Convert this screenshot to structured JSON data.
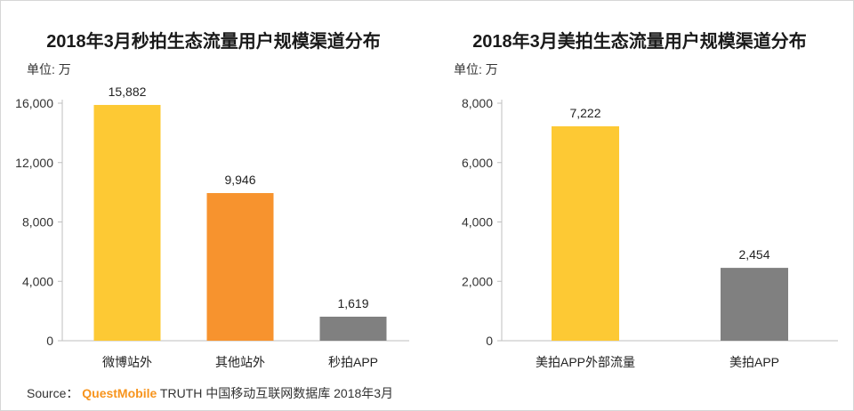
{
  "chart_data": [
    {
      "type": "bar",
      "title": "2018年3月秒拍生态流量用户规模渠道分布",
      "unit": "单位: 万",
      "categories": [
        "微博站外",
        "其他站外",
        "秒拍APP"
      ],
      "values": [
        15882,
        9946,
        1619
      ],
      "value_labels": [
        "15,882",
        "9,946",
        "1,619"
      ],
      "colors": [
        "#fdc934",
        "#f7932e",
        "#808080"
      ],
      "yticks": [
        "0",
        "4,000",
        "8,000",
        "12,000",
        "16,000"
      ],
      "ylim": [
        0,
        16000
      ],
      "grid": false
    },
    {
      "type": "bar",
      "title": "2018年3月美拍生态流量用户规模渠道分布",
      "unit": "单位: 万",
      "categories": [
        "美拍APP外部流量",
        "美拍APP"
      ],
      "values": [
        7222,
        2454
      ],
      "value_labels": [
        "7,222",
        "2,454"
      ],
      "colors": [
        "#fdc934",
        "#808080"
      ],
      "yticks": [
        "0",
        "2,000",
        "4,000",
        "6,000",
        "8,000"
      ],
      "ylim": [
        0,
        8000
      ],
      "grid": false
    }
  ],
  "source": {
    "prefix": "Source：",
    "brand": "QuestMobile",
    "suffix": "TRUTH 中国移动互联网数据库 2018年3月"
  }
}
